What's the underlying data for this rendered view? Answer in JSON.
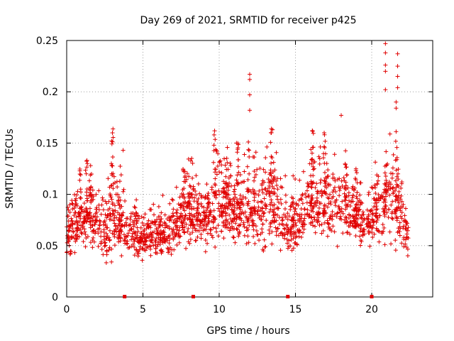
{
  "chart_data": {
    "type": "scatter",
    "title": "Day 269 of 2021, SRMTID for receiver p425",
    "xlabel": "GPS time / hours",
    "ylabel": "SRMTID / TECUs",
    "xlim": [
      0,
      24
    ],
    "ylim": [
      0,
      0.25
    ],
    "x_ticks": [
      0,
      5,
      10,
      15,
      20
    ],
    "x_tick_labels": [
      "0",
      "5",
      "10",
      "15",
      "20"
    ],
    "y_ticks": [
      0,
      0.05,
      0.1,
      0.15,
      0.2,
      0.25
    ],
    "y_tick_labels": [
      "0",
      "0.05",
      "0.1",
      "0.15",
      "0.2",
      "0.25"
    ],
    "grid": true,
    "marker": "+",
    "color": "#e00000",
    "data_extent_hours": [
      0,
      22.4
    ],
    "data_gap_markers_hours": [
      3.8,
      8.3,
      14.5,
      20.0
    ],
    "envelope": [
      {
        "x": 0.0,
        "low": 0.03,
        "high": 0.1
      },
      {
        "x": 1.0,
        "low": 0.035,
        "high": 0.13
      },
      {
        "x": 1.5,
        "low": 0.04,
        "high": 0.14
      },
      {
        "x": 2.5,
        "low": 0.025,
        "high": 0.11
      },
      {
        "x": 3.0,
        "low": 0.025,
        "high": 0.165
      },
      {
        "x": 4.0,
        "low": 0.03,
        "high": 0.1
      },
      {
        "x": 6.0,
        "low": 0.03,
        "high": 0.1
      },
      {
        "x": 7.0,
        "low": 0.035,
        "high": 0.11
      },
      {
        "x": 8.0,
        "low": 0.04,
        "high": 0.14
      },
      {
        "x": 9.0,
        "low": 0.04,
        "high": 0.12
      },
      {
        "x": 9.8,
        "low": 0.04,
        "high": 0.165
      },
      {
        "x": 11.0,
        "low": 0.04,
        "high": 0.15
      },
      {
        "x": 12.0,
        "low": 0.04,
        "high": 0.155
      },
      {
        "x": 13.5,
        "low": 0.04,
        "high": 0.165
      },
      {
        "x": 14.5,
        "low": 0.03,
        "high": 0.12
      },
      {
        "x": 15.5,
        "low": 0.04,
        "high": 0.13
      },
      {
        "x": 16.0,
        "low": 0.045,
        "high": 0.17
      },
      {
        "x": 17.0,
        "low": 0.04,
        "high": 0.16
      },
      {
        "x": 18.0,
        "low": 0.04,
        "high": 0.15
      },
      {
        "x": 19.0,
        "low": 0.045,
        "high": 0.13
      },
      {
        "x": 20.0,
        "low": 0.04,
        "high": 0.12
      },
      {
        "x": 21.0,
        "low": 0.04,
        "high": 0.16
      },
      {
        "x": 21.5,
        "low": 0.035,
        "high": 0.17
      },
      {
        "x": 22.4,
        "low": 0.03,
        "high": 0.1
      }
    ],
    "outliers": [
      {
        "x": 12.0,
        "y": 0.217
      },
      {
        "x": 12.0,
        "y": 0.212
      },
      {
        "x": 12.0,
        "y": 0.197
      },
      {
        "x": 12.0,
        "y": 0.182
      },
      {
        "x": 13.5,
        "y": 0.163
      },
      {
        "x": 18.0,
        "y": 0.177
      },
      {
        "x": 20.9,
        "y": 0.247
      },
      {
        "x": 20.9,
        "y": 0.238
      },
      {
        "x": 20.9,
        "y": 0.226
      },
      {
        "x": 20.9,
        "y": 0.22
      },
      {
        "x": 20.9,
        "y": 0.202
      },
      {
        "x": 21.7,
        "y": 0.237
      },
      {
        "x": 21.7,
        "y": 0.225
      },
      {
        "x": 21.7,
        "y": 0.215
      },
      {
        "x": 21.7,
        "y": 0.204
      },
      {
        "x": 21.6,
        "y": 0.19
      },
      {
        "x": 21.6,
        "y": 0.184
      },
      {
        "x": 9.7,
        "y": 0.162
      },
      {
        "x": 3.0,
        "y": 0.16
      },
      {
        "x": 3.7,
        "y": 0.143
      }
    ]
  }
}
